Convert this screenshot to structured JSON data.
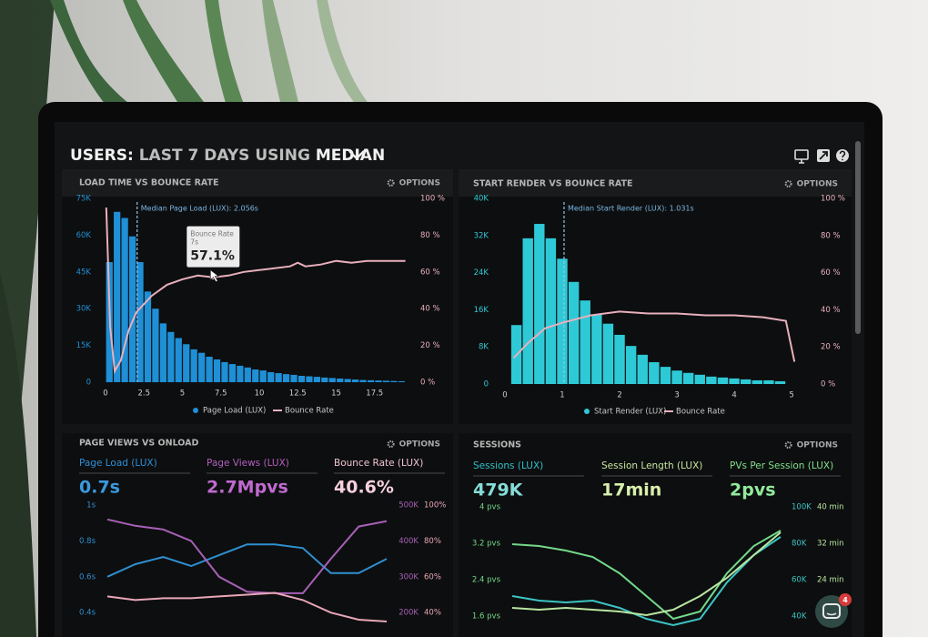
{
  "header": {
    "title_parts": [
      "USERS:",
      "LAST 7 DAYS",
      "USING",
      "MEDIAN"
    ]
  },
  "chat_badge": 4,
  "chart_data": [
    {
      "type": "histogram",
      "title": "LOAD TIME VS BOUNCE RATE",
      "options": "OPTIONS",
      "annotation": "Median Page Load (LUX): 2.056s",
      "median": 2.056,
      "bins": [
        0,
        0.5,
        1,
        1.5,
        2,
        2.5,
        3,
        3.5,
        4,
        4.5,
        5,
        5.5,
        6,
        6.5,
        7,
        7.5,
        8,
        8.5,
        9,
        9.5,
        10,
        10.5,
        11,
        11.5,
        12,
        12.5,
        13,
        13.5,
        14,
        14.5,
        15,
        15.5,
        16,
        16.5,
        17,
        17.5,
        18,
        18.5,
        19,
        19.5
      ],
      "series": [
        {
          "name": "Page Load (LUX)",
          "color": "#1f8fd6",
          "values": [
            49000,
            69500,
            67000,
            59500,
            49000,
            37000,
            30000,
            24000,
            20500,
            18000,
            15500,
            13400,
            12000,
            10400,
            9300,
            8200,
            7400,
            6700,
            6000,
            5200,
            4800,
            4100,
            3700,
            3300,
            3000,
            2600,
            2400,
            2200,
            1900,
            1700,
            1500,
            1300,
            1100,
            900,
            800,
            700,
            600,
            500,
            400
          ]
        },
        {
          "name": "Bounce Rate",
          "color": "#e8b0bc",
          "axis": "y2",
          "x": [
            0.05,
            0.3,
            0.6,
            1,
            1.5,
            2,
            3,
            4,
            5,
            6,
            7,
            8,
            9,
            10,
            11,
            12,
            12.5,
            13,
            14,
            15,
            16,
            17,
            18,
            19.5
          ],
          "values": [
            95,
            30,
            6,
            12,
            28,
            38,
            47,
            53,
            56,
            58,
            57.1,
            58,
            60,
            61,
            62,
            63,
            65,
            63,
            64,
            66,
            65,
            66,
            66,
            66
          ]
        }
      ],
      "tooltip": {
        "label": "Bounce Rate",
        "x": 7,
        "x_label": "7s",
        "value": 57.1,
        "value_label": "57.1%"
      },
      "xlim": [
        0,
        20
      ],
      "xticks": [
        0,
        2.5,
        5,
        7.5,
        10,
        12.5,
        15,
        17.5
      ],
      "ylim": [
        0,
        75000
      ],
      "yticks": [
        {
          "value": 0,
          "label": "0"
        },
        {
          "value": 15000,
          "label": "15K"
        },
        {
          "value": 30000,
          "label": "30K"
        },
        {
          "value": 45000,
          "label": "45K"
        },
        {
          "value": 60000,
          "label": "60K"
        },
        {
          "value": 75000,
          "label": "75K"
        }
      ],
      "y2lim": [
        0,
        100
      ],
      "y2ticks": [
        {
          "value": 0,
          "label": "0 %"
        },
        {
          "value": 20,
          "label": "20 %"
        },
        {
          "value": 40,
          "label": "40 %"
        },
        {
          "value": 60,
          "label": "60 %"
        },
        {
          "value": 80,
          "label": "80 %"
        },
        {
          "value": 100,
          "label": "100 %"
        }
      ],
      "grid": false
    },
    {
      "type": "histogram",
      "title": "START RENDER VS BOUNCE RATE",
      "options": "OPTIONS",
      "annotation": "Median Start Render (LUX): 1.031s",
      "median": 1.031,
      "bins": [
        0.1,
        0.3,
        0.5,
        0.7,
        0.9,
        1.1,
        1.3,
        1.5,
        1.7,
        1.9,
        2.1,
        2.3,
        2.5,
        2.7,
        2.9,
        3.1,
        3.3,
        3.5,
        3.7,
        3.9,
        4.1,
        4.3,
        4.5,
        4.7,
        4.9
      ],
      "series": [
        {
          "name": "Start Render (LUX)",
          "color": "#2ec9d6",
          "values": [
            12700,
            31400,
            34500,
            31400,
            27000,
            22000,
            18000,
            15000,
            13000,
            10600,
            8200,
            6300,
            4700,
            3700,
            2900,
            2400,
            2000,
            1600,
            1400,
            1200,
            1000,
            800,
            800,
            600
          ]
        },
        {
          "name": "Bounce Rate",
          "color": "#e8b0bc",
          "axis": "y2",
          "x": [
            0.15,
            0.4,
            0.7,
            1,
            1.5,
            2,
            2.5,
            3,
            3.5,
            4,
            4.5,
            4.9,
            5.05
          ],
          "values": [
            14,
            22,
            30,
            33,
            37,
            39,
            38,
            38,
            37,
            37,
            36,
            34,
            12
          ]
        }
      ],
      "xlim": [
        0,
        5.3
      ],
      "xticks": [
        0,
        1,
        2,
        3,
        4,
        5
      ],
      "ylim": [
        0,
        40000
      ],
      "yticks": [
        {
          "value": 0,
          "label": "0"
        },
        {
          "value": 8000,
          "label": "8K"
        },
        {
          "value": 16000,
          "label": "16K"
        },
        {
          "value": 24000,
          "label": "24K"
        },
        {
          "value": 32000,
          "label": "32K"
        },
        {
          "value": 40000,
          "label": "40K"
        }
      ],
      "y2lim": [
        0,
        100
      ],
      "y2ticks": [
        {
          "value": 0,
          "label": "0 %"
        },
        {
          "value": 20,
          "label": "20 %"
        },
        {
          "value": 40,
          "label": "40 %"
        },
        {
          "value": 60,
          "label": "60 %"
        },
        {
          "value": 80,
          "label": "80 %"
        },
        {
          "value": 100,
          "label": "100 %"
        }
      ],
      "grid": false
    },
    {
      "type": "line",
      "title": "PAGE VIEWS VS ONLOAD",
      "options": "OPTIONS",
      "kpis": [
        {
          "label": "Page Load (LUX)",
          "value": "0.7s",
          "color": "#2f8fd8",
          "value_color": "#3a9ae0"
        },
        {
          "label": "Page Views (LUX)",
          "value": "2.7Mpvs",
          "color": "#b45fc0",
          "value_color": "#c06ad0"
        },
        {
          "label": "Bounce Rate (LUX)",
          "value": "40.6%",
          "color": "#f0c4d0",
          "value_color": "#f6d0dc"
        }
      ],
      "x": [
        0,
        1,
        2,
        3,
        4,
        5,
        6,
        7,
        8,
        9,
        10
      ],
      "xlim": [
        0,
        10
      ],
      "series": [
        {
          "name": "Page Load",
          "color": "#2f8fd0",
          "values": [
            0.6,
            0.67,
            0.71,
            0.66,
            0.72,
            0.78,
            0.78,
            0.76,
            0.62,
            0.62,
            0.7
          ]
        },
        {
          "name": "Page Views",
          "color": "#a860b8",
          "axis": "y2",
          "values": [
            460000,
            442000,
            432000,
            400000,
            300000,
            258000,
            254000,
            254000,
            350000,
            440000,
            455000
          ]
        },
        {
          "name": "Bounce Rate",
          "color": "#e8a6b8",
          "axis": "y3",
          "values": [
            49,
            47,
            48,
            48,
            49,
            50,
            51,
            47,
            40,
            36,
            35
          ]
        }
      ],
      "ylim": [
        0.35,
        1
      ],
      "yticks": [
        {
          "value": 0.4,
          "label": "0.4s"
        },
        {
          "value": 0.6,
          "label": "0.6s"
        },
        {
          "value": 0.8,
          "label": "0.8s"
        },
        {
          "value": 1,
          "label": "1s"
        }
      ],
      "y2lim": [
        175000,
        500000
      ],
      "y2ticks": [
        {
          "value": 200000,
          "label": "200K"
        },
        {
          "value": 300000,
          "label": "300K"
        },
        {
          "value": 400000,
          "label": "400K"
        },
        {
          "value": 500000,
          "label": "500K"
        }
      ],
      "y3lim": [
        35,
        100
      ],
      "y3ticks": [
        {
          "value": 40,
          "label": "40%"
        },
        {
          "value": 60,
          "label": "60%"
        },
        {
          "value": 80,
          "label": "80%"
        },
        {
          "value": 100,
          "label": "100%"
        }
      ],
      "grid": false
    },
    {
      "type": "line",
      "title": "SESSIONS",
      "options": "OPTIONS",
      "kpis": [
        {
          "label": "Sessions (LUX)",
          "value": "479K",
          "color": "#30c0c8",
          "value_color": "#86dcd8"
        },
        {
          "label": "Session Length (LUX)",
          "value": "17min",
          "color": "#c8e6a0",
          "value_color": "#d8f0ac"
        },
        {
          "label": "PVs Per Session (LUX)",
          "value": "2pvs",
          "color": "#7ee08a",
          "value_color": "#92ea9c"
        }
      ],
      "x": [
        0,
        1,
        2,
        3,
        4,
        5,
        6,
        7,
        8,
        9,
        10
      ],
      "xlim": [
        0,
        10
      ],
      "series": [
        {
          "name": "PVs Per Session",
          "color": "#74d98a",
          "values": [
            3.18,
            3.14,
            3.04,
            2.9,
            2.54,
            2.04,
            1.54,
            1.7,
            2.54,
            3.14,
            3.48
          ]
        },
        {
          "name": "Sessions",
          "color": "#3cc4c4",
          "axis": "y2",
          "values": [
            51000,
            48500,
            47500,
            48500,
            44500,
            38500,
            35000,
            38500,
            58500,
            73500,
            83500
          ]
        },
        {
          "name": "Session Length",
          "color": "#b8e6a0",
          "axis": "y3",
          "values": [
            17.8,
            17.4,
            17.8,
            17.4,
            17,
            16.2,
            17.4,
            20.4,
            24.4,
            29.4,
            34.4
          ]
        }
      ],
      "ylim": [
        1.4,
        4
      ],
      "yticks": [
        {
          "value": 1.6,
          "label": "1.6 pvs"
        },
        {
          "value": 2.4,
          "label": "2.4 pvs"
        },
        {
          "value": 3.2,
          "label": "3.2 pvs"
        },
        {
          "value": 4,
          "label": "4 pvs"
        }
      ],
      "y2lim": [
        35000,
        100000
      ],
      "y2ticks": [
        {
          "value": 40000,
          "label": "40K"
        },
        {
          "value": 60000,
          "label": "60K"
        },
        {
          "value": 80000,
          "label": "80K"
        },
        {
          "value": 100000,
          "label": "100K"
        }
      ],
      "y3lim": [
        14,
        40
      ],
      "y3ticks": [
        {
          "value": 24,
          "label": "24 min"
        },
        {
          "value": 32,
          "label": "32 min"
        },
        {
          "value": 40,
          "label": "40 min"
        }
      ],
      "grid": false
    }
  ]
}
